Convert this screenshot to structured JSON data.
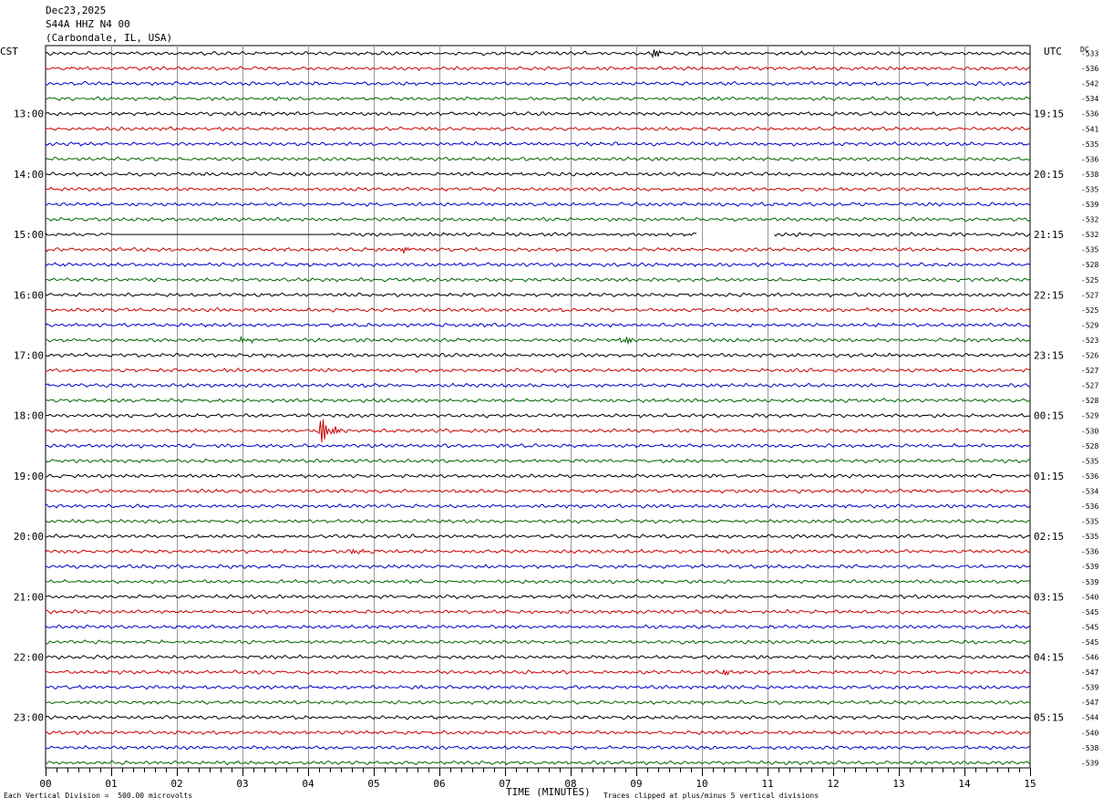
{
  "header": {
    "date": "Dec23,2025",
    "station": "S44A HHZ N4 00",
    "location": "(Carbondale, IL, USA)"
  },
  "left_timezone": "CST",
  "right_timezone": "UTC",
  "dc_label": "DC",
  "footer": {
    "scale_note": "Each Vertical Division =  500.00 microvolts",
    "xaxis_title": "TIME (MINUTES)",
    "clip_note": "Traces clipped at plus/minus 5 vertical divisions"
  },
  "chart_data": {
    "type": "line",
    "title": "",
    "xlabel": "TIME (MINUTES)",
    "xlim": [
      0,
      15
    ],
    "x_ticks": [
      "00",
      "01",
      "02",
      "03",
      "04",
      "05",
      "06",
      "07",
      "08",
      "09",
      "10",
      "11",
      "12",
      "13",
      "14",
      "15"
    ],
    "trace_colors": [
      "#000000",
      "#cc0000",
      "#0000cc",
      "#006600"
    ],
    "left_hour_labels": [
      "13:00",
      "14:00",
      "15:00",
      "16:00",
      "17:00",
      "18:00",
      "19:00",
      "20:00",
      "21:00",
      "22:00",
      "23:00"
    ],
    "right_hour_labels": [
      "19:15",
      "20:15",
      "21:15",
      "22:15",
      "23:15",
      "00:15",
      "01:15",
      "02:15",
      "03:15",
      "04:15",
      "05:15"
    ],
    "dc_offsets": [
      "-533",
      "-536",
      "-542",
      "-534",
      "-536",
      "-541",
      "-535",
      "-536",
      "-538",
      "-535",
      "-539",
      "-532",
      "-532",
      "-535",
      "-528",
      "-525",
      "-527",
      "-525",
      "-529",
      "-523",
      "-526",
      "-527",
      "-527",
      "-528",
      "-529",
      "-530",
      "-528",
      "-535",
      "-536",
      "-534",
      "-536",
      "-535",
      "-535",
      "-536",
      "-539",
      "-539",
      "-540",
      "-545",
      "-545",
      "-545",
      "-546",
      "-547",
      "-539",
      "-547",
      "-544",
      "-540",
      "-538",
      "-539"
    ],
    "gaps": [
      {
        "trace": 12,
        "x_start": 1.0,
        "x_end": 4.35,
        "style": "flat"
      },
      {
        "trace": 12,
        "x_start": 9.92,
        "x_end": 11.1,
        "style": "blank"
      }
    ],
    "events": [
      {
        "trace": 0,
        "x": 9.25,
        "amplitude": 2
      },
      {
        "trace": 13,
        "x": 5.4,
        "amplitude": 1.4
      },
      {
        "trace": 19,
        "x": 8.78,
        "amplitude": 2
      },
      {
        "trace": 19,
        "x": 3.0,
        "amplitude": 1.3
      },
      {
        "trace": 25,
        "x": 4.2,
        "amplitude": 5
      },
      {
        "trace": 33,
        "x": 4.7,
        "amplitude": 1.3
      },
      {
        "trace": 41,
        "x": 10.3,
        "amplitude": 1.3
      }
    ]
  }
}
